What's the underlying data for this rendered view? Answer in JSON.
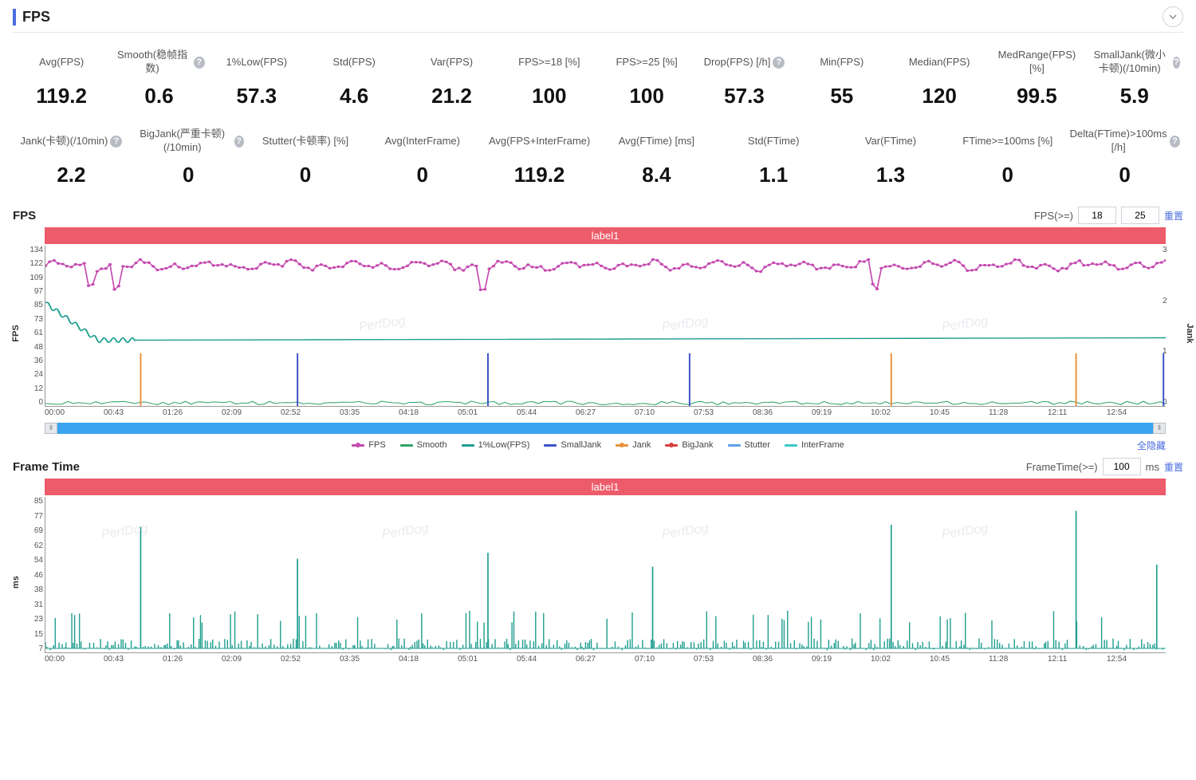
{
  "header": {
    "title": "FPS"
  },
  "watermark_text": "PerfDog",
  "metrics_row1": [
    {
      "label": "Avg(FPS)",
      "value": "119.2",
      "help": false
    },
    {
      "label": "Smooth(稳帧指数)",
      "value": "0.6",
      "help": true
    },
    {
      "label": "1%Low(FPS)",
      "value": "57.3",
      "help": false
    },
    {
      "label": "Std(FPS)",
      "value": "4.6",
      "help": false
    },
    {
      "label": "Var(FPS)",
      "value": "21.2",
      "help": false
    },
    {
      "label": "FPS>=18 [%]",
      "value": "100",
      "help": false
    },
    {
      "label": "FPS>=25 [%]",
      "value": "100",
      "help": false
    },
    {
      "label": "Drop(FPS) [/h]",
      "value": "57.3",
      "help": true
    },
    {
      "label": "Min(FPS)",
      "value": "55",
      "help": false
    },
    {
      "label": "Median(FPS)",
      "value": "120",
      "help": false
    },
    {
      "label": "MedRange(FPS)[%]",
      "value": "99.5",
      "help": false
    },
    {
      "label": "SmallJank(微小卡顿)(/10min)",
      "value": "5.9",
      "help": true
    }
  ],
  "metrics_row2": [
    {
      "label": "Jank(卡顿)(/10min)",
      "value": "2.2",
      "help": true
    },
    {
      "label": "BigJank(严重卡顿)(/10min)",
      "value": "0",
      "help": true
    },
    {
      "label": "Stutter(卡顿率) [%]",
      "value": "0",
      "help": false
    },
    {
      "label": "Avg(InterFrame)",
      "value": "0",
      "help": false
    },
    {
      "label": "Avg(FPS+InterFrame)",
      "value": "119.2",
      "help": false
    },
    {
      "label": "Avg(FTime) [ms]",
      "value": "8.4",
      "help": false
    },
    {
      "label": "Std(FTime)",
      "value": "1.1",
      "help": false
    },
    {
      "label": "Var(FTime)",
      "value": "1.3",
      "help": false
    },
    {
      "label": "FTime>=100ms [%]",
      "value": "0",
      "help": false
    },
    {
      "label": "Delta(FTime)>100ms [/h]",
      "value": "0",
      "help": true
    }
  ],
  "fps_chart": {
    "title": "FPS",
    "threshold_label": "FPS(>=)",
    "threshold1": "18",
    "threshold2": "25",
    "reset_label": "重置",
    "label_bar": "label1",
    "y_label_left": "FPS",
    "y_label_right": "Jank",
    "y_ticks_left": [
      "134",
      "122",
      "109",
      "97",
      "85",
      "73",
      "61",
      "48",
      "36",
      "24",
      "12",
      "0"
    ],
    "y_ticks_right": [
      "3",
      "2",
      "1",
      "0"
    ],
    "y_min": 0,
    "y_max": 134,
    "y2_min": 0,
    "y2_max": 3,
    "x_ticks": [
      "00:00",
      "00:43",
      "01:26",
      "02:09",
      "02:52",
      "03:35",
      "04:18",
      "05:01",
      "05:44",
      "06:27",
      "07:10",
      "07:53",
      "08:36",
      "09:19",
      "10:02",
      "10:45",
      "11:28",
      "12:11",
      "12:54"
    ],
    "hide_all_label": "全隐藏",
    "legend": [
      {
        "name": "FPS",
        "color": "#c54bb0",
        "dotted": true
      },
      {
        "name": "Smooth",
        "color": "#2fa36a",
        "dotted": false
      },
      {
        "name": "1%Low(FPS)",
        "color": "#1f9e8f",
        "dotted": false
      },
      {
        "name": "SmallJank",
        "color": "#3c52c7",
        "dotted": false
      },
      {
        "name": "Jank",
        "color": "#e8913b",
        "dotted": true
      },
      {
        "name": "BigJank",
        "color": "#d6403c",
        "dotted": true
      },
      {
        "name": "Stutter",
        "color": "#5aa2e0",
        "dotted": false
      },
      {
        "name": "InterFrame",
        "color": "#3ac7c2",
        "dotted": false
      }
    ],
    "series": {
      "fps_line": {
        "color": "#c54bb0",
        "width": 1.2,
        "avg_y": 119,
        "jitter": 8,
        "dips": [
          0.04,
          0.062,
          0.39,
          0.74
        ]
      },
      "low1pct_line": {
        "color": "#1f9e8f",
        "width": 1.4,
        "start_y": 86,
        "settle_y": 55
      },
      "smooth_line": {
        "color": "#2fa36a",
        "width": 1,
        "baseline_y": 2
      },
      "smalljank_spikes": {
        "color": "#3c52c7",
        "width": 1.4,
        "positions": [
          0.225,
          0.395,
          0.575,
          0.998
        ],
        "height_y": 44
      },
      "jank_spikes": {
        "color": "#e8913b",
        "width": 1.4,
        "positions": [
          0.085,
          0.755,
          0.92
        ],
        "height_y": 44
      }
    },
    "background_color": "#ffffff",
    "axis_color": "#999999"
  },
  "ftime_chart": {
    "title": "Frame Time",
    "threshold_label": "FrameTime(>=)",
    "threshold": "100",
    "unit": "ms",
    "reset_label": "重置",
    "label_bar": "label1",
    "y_label_left": "ms",
    "y_ticks_left": [
      "85",
      "77",
      "69",
      "62",
      "54",
      "46",
      "38",
      "31",
      "23",
      "15",
      "7"
    ],
    "y_min": 7,
    "y_max": 85,
    "x_ticks": [
      "00:00",
      "00:43",
      "01:26",
      "02:09",
      "02:52",
      "03:35",
      "04:18",
      "05:01",
      "05:44",
      "06:27",
      "07:10",
      "07:53",
      "08:36",
      "09:19",
      "10:02",
      "10:45",
      "11:28",
      "12:11",
      "12:54"
    ],
    "series": {
      "ftime": {
        "color": "#1f9e8f",
        "width": 1,
        "baseline_y": 9,
        "tall_spikes": [
          {
            "x": 0.085,
            "y": 70
          },
          {
            "x": 0.225,
            "y": 54
          },
          {
            "x": 0.395,
            "y": 57
          },
          {
            "x": 0.542,
            "y": 50
          },
          {
            "x": 0.755,
            "y": 71
          },
          {
            "x": 0.92,
            "y": 78
          },
          {
            "x": 0.992,
            "y": 51
          }
        ],
        "med_spike_y": 22
      }
    },
    "background_color": "#ffffff",
    "axis_color": "#999999"
  }
}
